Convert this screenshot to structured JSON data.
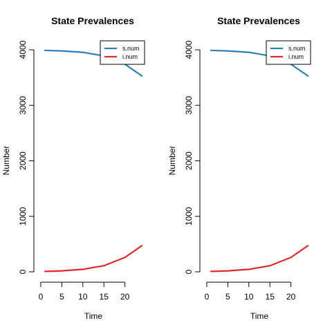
{
  "chart_data": [
    {
      "type": "line",
      "title": "State Prevalences",
      "xlabel": "Time",
      "ylabel": "Number",
      "xlim": [
        1,
        24
      ],
      "ylim": [
        0,
        4000
      ],
      "x_ticks": [
        0,
        5,
        10,
        15,
        20
      ],
      "y_ticks": [
        0,
        1000,
        2000,
        3000,
        4000
      ],
      "legend": {
        "position": "top-right",
        "entries": [
          "s.num",
          "i.num"
        ]
      },
      "series": [
        {
          "name": "s.num",
          "color": "#2e7ebc",
          "x": [
            1,
            5,
            10,
            15,
            20,
            24
          ],
          "y": [
            3990,
            3980,
            3955,
            3890,
            3740,
            3530
          ]
        },
        {
          "name": "i.num",
          "color": "#e0282a",
          "x": [
            1,
            5,
            10,
            15,
            20,
            24
          ],
          "y": [
            8,
            18,
            45,
            110,
            260,
            470
          ]
        }
      ]
    },
    {
      "type": "line",
      "title": "State Prevalences",
      "xlabel": "Time",
      "ylabel": "Number",
      "xlim": [
        1,
        24
      ],
      "ylim": [
        0,
        4000
      ],
      "x_ticks": [
        0,
        5,
        10,
        15,
        20
      ],
      "y_ticks": [
        0,
        1000,
        2000,
        3000,
        4000
      ],
      "legend": {
        "position": "top-right",
        "entries": [
          "s.num",
          "i.num"
        ]
      },
      "series": [
        {
          "name": "s.num",
          "color": "#2e7ebc",
          "x": [
            1,
            5,
            10,
            15,
            20,
            24
          ],
          "y": [
            3990,
            3980,
            3955,
            3890,
            3740,
            3530
          ]
        },
        {
          "name": "i.num",
          "color": "#e0282a",
          "x": [
            1,
            5,
            10,
            15,
            20,
            24
          ],
          "y": [
            8,
            18,
            45,
            110,
            260,
            470
          ]
        }
      ]
    }
  ]
}
